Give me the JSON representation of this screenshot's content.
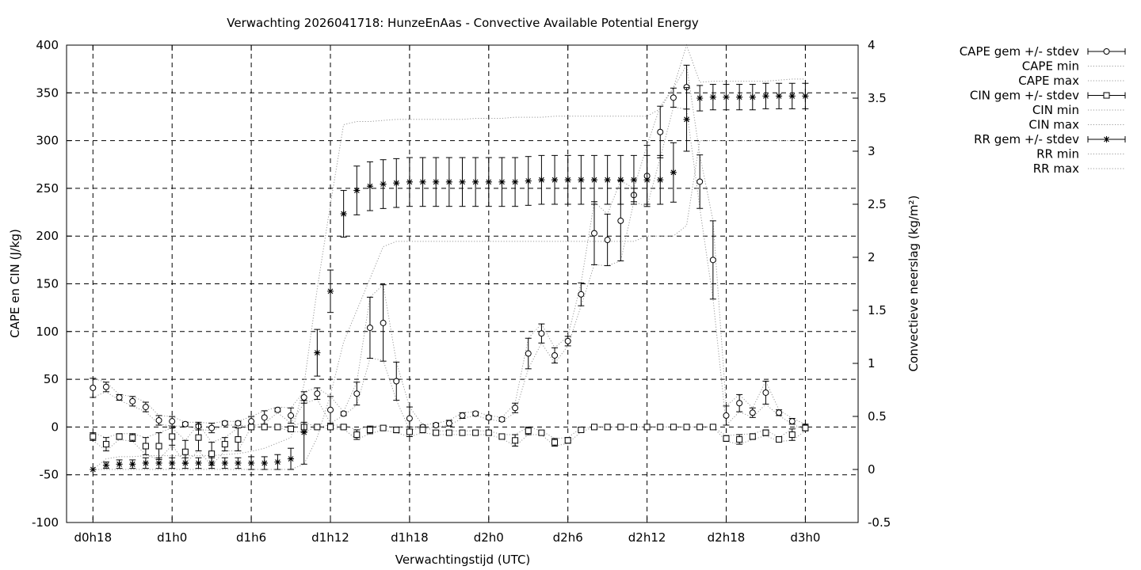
{
  "chart_data": {
    "type": "line",
    "title": "Verwachting 2026041718: HunzeEnAas - Convective Available Potential Energy",
    "xlabel": "Verwachtingstijd (UTC)",
    "ylabel": "CAPE en CIN (J/kg)",
    "y2label": "Convectieve neerslag (kg/m²)",
    "x_unit": "forecast hours",
    "xlim": [
      16,
      76
    ],
    "ylim": [
      -100,
      400
    ],
    "y2lim": [
      -0.5,
      4
    ],
    "grid": true,
    "legend_position": "outside-right",
    "x_ticks": [
      {
        "value": 18,
        "label": "d0h18"
      },
      {
        "value": 24,
        "label": "d1h0"
      },
      {
        "value": 30,
        "label": "d1h6"
      },
      {
        "value": 36,
        "label": "d1h12"
      },
      {
        "value": 42,
        "label": "d1h18"
      },
      {
        "value": 48,
        "label": "d2h0"
      },
      {
        "value": 54,
        "label": "d2h6"
      },
      {
        "value": 60,
        "label": "d2h12"
      },
      {
        "value": 66,
        "label": "d2h18"
      },
      {
        "value": 72,
        "label": "d3h0"
      }
    ],
    "y_ticks": [
      "-100",
      "-50",
      "0",
      "50",
      "100",
      "150",
      "200",
      "250",
      "300",
      "350",
      "400"
    ],
    "y2_ticks": [
      "-0.5",
      "0",
      "0.5",
      "1",
      "1.5",
      "2",
      "2.5",
      "3",
      "3.5",
      "4"
    ],
    "x": [
      18,
      19,
      20,
      21,
      22,
      23,
      24,
      25,
      26,
      27,
      28,
      29,
      30,
      31,
      32,
      33,
      34,
      35,
      36,
      37,
      38,
      39,
      40,
      41,
      42,
      43,
      44,
      45,
      46,
      47,
      48,
      49,
      50,
      51,
      52,
      53,
      54,
      55,
      56,
      57,
      58,
      59,
      60,
      61,
      62,
      63,
      64,
      65,
      66,
      67,
      68,
      69,
      70,
      71,
      72
    ],
    "series": [
      {
        "name": "CAPE gem +/- stdev",
        "marker": "circle",
        "axis": "y1",
        "mean": [
          41,
          42,
          31,
          27,
          21,
          7,
          6,
          3,
          1,
          -1,
          4,
          4,
          6,
          10,
          18,
          12,
          31,
          35,
          18,
          14,
          35,
          104,
          109,
          48,
          9,
          0,
          2,
          4,
          12,
          14,
          10,
          8,
          20,
          77,
          98,
          75,
          90,
          139,
          203,
          196,
          216,
          243,
          263,
          309,
          345,
          356,
          257,
          175,
          12,
          25,
          15,
          36,
          15,
          6,
          0
        ],
        "stdev": [
          10,
          5,
          3,
          5,
          5,
          5,
          5,
          2,
          4,
          5,
          2,
          2,
          5,
          7,
          2,
          8,
          6,
          6,
          14,
          2,
          12,
          32,
          40,
          20,
          12,
          2,
          2,
          3,
          3,
          2,
          2,
          2,
          5,
          16,
          10,
          8,
          5,
          12,
          33,
          27,
          42,
          7,
          32,
          27,
          10,
          23,
          28,
          41,
          10,
          9,
          5,
          12,
          3,
          3,
          3
        ]
      },
      {
        "name": "CAPE min",
        "marker": "none",
        "axis": "y1",
        "values": [
          31,
          37,
          28,
          22,
          16,
          3,
          1,
          1,
          -2,
          -4,
          2,
          2,
          1,
          4,
          15,
          4,
          25,
          29,
          4,
          12,
          23,
          72,
          70,
          28,
          -3,
          -1,
          0,
          2,
          9,
          12,
          8,
          6,
          15,
          61,
          88,
          67,
          85,
          127,
          170,
          169,
          174,
          236,
          231,
          282,
          335,
          333,
          229,
          134,
          2,
          16,
          10,
          24,
          12,
          3,
          -3
        ]
      },
      {
        "name": "CAPE max",
        "marker": "none",
        "axis": "y1",
        "values": [
          51,
          47,
          34,
          32,
          26,
          12,
          11,
          5,
          5,
          4,
          6,
          6,
          11,
          17,
          21,
          20,
          37,
          41,
          32,
          16,
          47,
          136,
          149,
          68,
          21,
          2,
          4,
          7,
          15,
          16,
          12,
          10,
          25,
          93,
          108,
          83,
          95,
          151,
          236,
          223,
          258,
          250,
          295,
          336,
          355,
          379,
          285,
          216,
          22,
          34,
          20,
          48,
          18,
          9,
          3
        ]
      },
      {
        "name": "CIN gem +/- stdev",
        "marker": "square",
        "axis": "y1",
        "mean": [
          -10,
          -18,
          -10,
          -11,
          -20,
          -20,
          -10,
          -26,
          -11,
          -28,
          -18,
          -13,
          0,
          0,
          0,
          -2,
          0,
          0,
          0,
          0,
          -8,
          -3,
          -1,
          -3,
          -5,
          -3,
          -6,
          -6,
          -6,
          -6,
          -6,
          -10,
          -14,
          -4,
          -6,
          -16,
          -14,
          -3,
          0,
          0,
          0,
          0,
          0,
          0,
          0,
          0,
          0,
          0,
          -12,
          -13,
          -10,
          -6,
          -13,
          -8,
          -1
        ],
        "stdev": [
          4,
          7,
          3,
          4,
          9,
          14,
          9,
          12,
          14,
          12,
          7,
          12,
          0,
          0,
          0,
          3,
          5,
          0,
          2,
          2,
          5,
          4,
          2,
          3,
          5,
          3,
          2,
          2,
          2,
          2,
          2,
          2,
          6,
          4,
          2,
          4,
          3,
          2,
          0,
          0,
          0,
          0,
          0,
          0,
          0,
          0,
          0,
          0,
          3,
          5,
          3,
          3,
          2,
          6,
          3
        ]
      },
      {
        "name": "CIN min",
        "marker": "none",
        "axis": "y1",
        "values": [
          -14,
          -25,
          -13,
          -15,
          -29,
          -34,
          -19,
          -38,
          -25,
          -40,
          -25,
          -25,
          0,
          0,
          0,
          -5,
          -5,
          0,
          -2,
          -2,
          -13,
          -7,
          -3,
          -6,
          -10,
          -6,
          -8,
          -8,
          -8,
          -8,
          -8,
          -12,
          -20,
          -8,
          -8,
          -20,
          -17,
          -5,
          0,
          0,
          0,
          0,
          0,
          0,
          0,
          0,
          0,
          0,
          -15,
          -18,
          -13,
          -9,
          -15,
          -14,
          -4
        ]
      },
      {
        "name": "CIN max",
        "marker": "none",
        "axis": "y1",
        "values": [
          -6,
          -11,
          -7,
          -7,
          -11,
          -6,
          -1,
          -14,
          3,
          -16,
          -11,
          -1,
          0,
          0,
          0,
          1,
          5,
          0,
          2,
          2,
          -3,
          1,
          1,
          0,
          0,
          0,
          -4,
          -4,
          -4,
          -4,
          -4,
          -8,
          -8,
          0,
          -4,
          -12,
          -11,
          -1,
          0,
          0,
          0,
          0,
          0,
          0,
          0,
          0,
          0,
          0,
          -9,
          -8,
          -7,
          -3,
          -11,
          -2,
          2
        ]
      },
      {
        "name": "RR gem +/- stdev",
        "marker": "star",
        "axis": "y2",
        "mean": [
          0,
          0.04,
          0.05,
          0.05,
          0.06,
          0.06,
          0.06,
          0.06,
          0.06,
          0.06,
          0.06,
          0.06,
          0.06,
          0.06,
          0.07,
          0.1,
          0.35,
          1.1,
          1.68,
          2.41,
          2.63,
          2.67,
          2.69,
          2.7,
          2.71,
          2.71,
          2.71,
          2.71,
          2.71,
          2.71,
          2.71,
          2.71,
          2.71,
          2.72,
          2.73,
          2.73,
          2.73,
          2.73,
          2.73,
          2.73,
          2.73,
          2.73,
          2.73,
          2.73,
          2.8,
          3.3,
          3.5,
          3.51,
          3.51,
          3.51,
          3.51,
          3.52,
          3.52,
          3.52,
          3.52
        ],
        "stdev": [
          0,
          0.03,
          0.04,
          0.04,
          0.05,
          0.05,
          0.05,
          0.05,
          0.05,
          0.05,
          0.05,
          0.05,
          0.06,
          0.06,
          0.07,
          0.1,
          0.3,
          0.22,
          0.2,
          0.22,
          0.23,
          0.23,
          0.23,
          0.23,
          0.23,
          0.23,
          0.23,
          0.23,
          0.23,
          0.23,
          0.23,
          0.23,
          0.23,
          0.23,
          0.23,
          0.23,
          0.23,
          0.23,
          0.23,
          0.23,
          0.23,
          0.23,
          0.23,
          0.23,
          0.28,
          0.3,
          0.12,
          0.12,
          0.12,
          0.12,
          0.12,
          0.12,
          0.12,
          0.12,
          0.12
        ]
      },
      {
        "name": "RR min",
        "marker": "none",
        "axis": "y2",
        "values": [
          0,
          0,
          0,
          0,
          0,
          0,
          0,
          0,
          0,
          0,
          0,
          0,
          0,
          0,
          0,
          0,
          0.05,
          0.3,
          0.7,
          1.2,
          1.5,
          1.8,
          2.1,
          2.15,
          2.15,
          2.15,
          2.15,
          2.15,
          2.15,
          2.15,
          2.15,
          2.15,
          2.15,
          2.15,
          2.15,
          2.15,
          2.15,
          2.15,
          2.15,
          2.15,
          2.15,
          2.15,
          2.2,
          2.2,
          2.2,
          2.3,
          3.1,
          3.1,
          3.1,
          3.1,
          3.1,
          3.1,
          3.1,
          3.1,
          3.1
        ]
      },
      {
        "name": "RR max",
        "marker": "none",
        "axis": "y2",
        "values": [
          0,
          0.1,
          0.12,
          0.12,
          0.13,
          0.13,
          0.13,
          0.13,
          0.13,
          0.13,
          0.14,
          0.15,
          0.17,
          0.2,
          0.25,
          0.3,
          0.8,
          1.7,
          2.5,
          3.25,
          3.28,
          3.28,
          3.29,
          3.3,
          3.3,
          3.3,
          3.3,
          3.3,
          3.3,
          3.31,
          3.31,
          3.31,
          3.32,
          3.32,
          3.32,
          3.33,
          3.33,
          3.33,
          3.33,
          3.33,
          3.33,
          3.33,
          3.33,
          3.4,
          3.6,
          4,
          3.65,
          3.66,
          3.66,
          3.66,
          3.66,
          3.66,
          3.67,
          3.68,
          3.68
        ]
      }
    ]
  }
}
